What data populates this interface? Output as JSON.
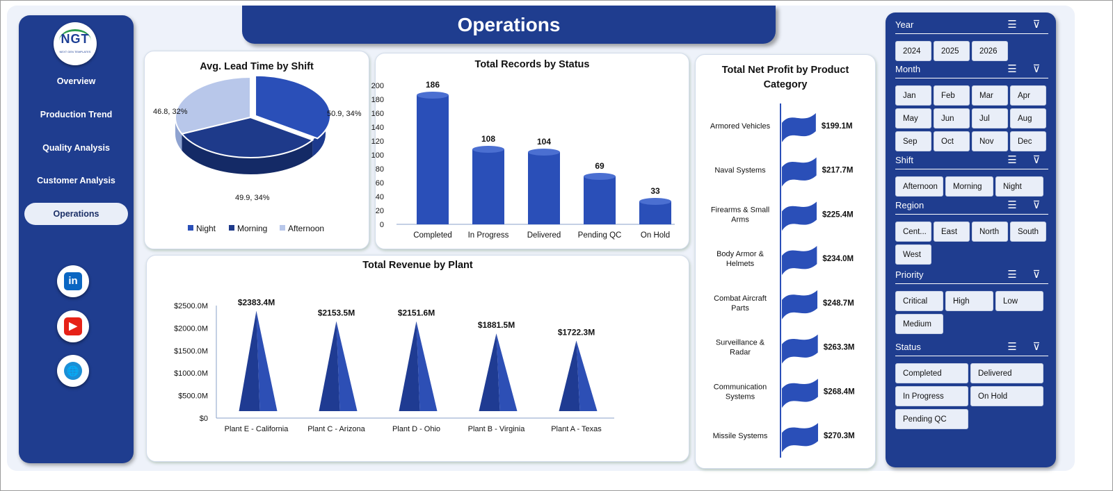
{
  "title": "Operations",
  "logo": {
    "text": "NGT",
    "tagline": "NEXT GEN TEMPLATES"
  },
  "nav": {
    "items": [
      {
        "label": "Overview"
      },
      {
        "label": "Production Trend"
      },
      {
        "label": "Quality Analysis"
      },
      {
        "label": "Customer Analysis"
      },
      {
        "label": "Operations",
        "active": true
      }
    ],
    "social": [
      {
        "name": "linkedin-icon",
        "glyph": "in",
        "color": "#0a66c2"
      },
      {
        "name": "youtube-icon",
        "glyph": "▶",
        "color": "#e62117"
      },
      {
        "name": "globe-icon",
        "glyph": "🌐",
        "color": "#1a8fd6"
      }
    ]
  },
  "charts": {
    "lead_time": {
      "title": "Avg. Lead Time by Shift",
      "chart_data": {
        "type": "pie",
        "title": "Avg. Lead Time by Shift",
        "slices": [
          {
            "label": "Night",
            "value": 50.9,
            "pct": "34%",
            "color": "#2a4fb8"
          },
          {
            "label": "Morning",
            "value": 49.9,
            "pct": "34%",
            "color": "#1e3a8a"
          },
          {
            "label": "Afternoon",
            "value": 46.8,
            "pct": "32%",
            "color": "#b8c7ea"
          }
        ],
        "data_labels": [
          "50.9, 34%",
          "49.9, 34%",
          "46.8, 32%"
        ],
        "legend": [
          "Night",
          "Morning",
          "Afternoon"
        ],
        "legend_position": "bottom"
      }
    },
    "records": {
      "title": "Total Records by Status",
      "chart_data": {
        "type": "bar",
        "title": "Total Records by Status",
        "categories": [
          "Completed",
          "In Progress",
          "Delivered",
          "Pending QC",
          "On Hold"
        ],
        "values": [
          186,
          108,
          104,
          69,
          33
        ],
        "ylim": [
          0,
          200
        ],
        "yticks": [
          0,
          20,
          40,
          60,
          80,
          100,
          120,
          140,
          160,
          180,
          200
        ],
        "color": "#2a4fb8"
      }
    },
    "revenue": {
      "title": "Total Revenue  by Plant",
      "chart_data": {
        "type": "bar",
        "title": "Total Revenue  by Plant",
        "categories": [
          "Plant E - California",
          "Plant C - Arizona",
          "Plant D - Ohio",
          "Plant B - Virginia",
          "Plant A - Texas"
        ],
        "values": [
          2383.4,
          2153.5,
          2151.6,
          1881.5,
          1722.3
        ],
        "data_labels": [
          "$2383.4M",
          "$2153.5M",
          "$2151.6M",
          "$1881.5M",
          "$1722.3M"
        ],
        "ylim": [
          0,
          2500
        ],
        "yticks": [
          "$0",
          "$500.0M",
          "$1000.0M",
          "$1500.0M",
          "$2000.0M",
          "$2500.0M"
        ],
        "color": "#2a4fb8"
      }
    },
    "profit": {
      "title": "Total Net Profit by Product Category",
      "chart_data": {
        "type": "bar",
        "title": "Total Net Profit by Product Category",
        "categories": [
          "Armored Vehicles",
          "Naval Systems",
          "Firearms & Small Arms",
          "Body Armor & Helmets",
          "Combat Aircraft Parts",
          "Surveillance & Radar",
          "Communication Systems",
          "Missile Systems"
        ],
        "values": [
          199.1,
          217.7,
          225.4,
          234.0,
          248.7,
          263.3,
          268.4,
          270.3
        ],
        "data_labels": [
          "$199.1M",
          "$217.7M",
          "$225.4M",
          "$234.0M",
          "$248.7M",
          "$263.3M",
          "$268.4M",
          "$270.3M"
        ],
        "color": "#2a4fb8"
      }
    }
  },
  "slicers": [
    {
      "title": "Year",
      "items": [
        "2024",
        "2025",
        "2026"
      ]
    },
    {
      "title": "Month",
      "items": [
        "Jan",
        "Feb",
        "Mar",
        "Apr",
        "May",
        "Jun",
        "Jul",
        "Aug",
        "Sep",
        "Oct",
        "Nov",
        "Dec"
      ]
    },
    {
      "title": "Shift",
      "items": [
        "Afternoon",
        "Morning",
        "Night"
      ]
    },
    {
      "title": "Region",
      "items": [
        "Cent...",
        "East",
        "North",
        "South",
        "West"
      ]
    },
    {
      "title": "Priority",
      "items": [
        "Critical",
        "High",
        "Low",
        "Medium"
      ]
    },
    {
      "title": "Status",
      "items": [
        "Completed",
        "Delivered",
        "In Progress",
        "On Hold",
        "Pending QC"
      ]
    }
  ]
}
